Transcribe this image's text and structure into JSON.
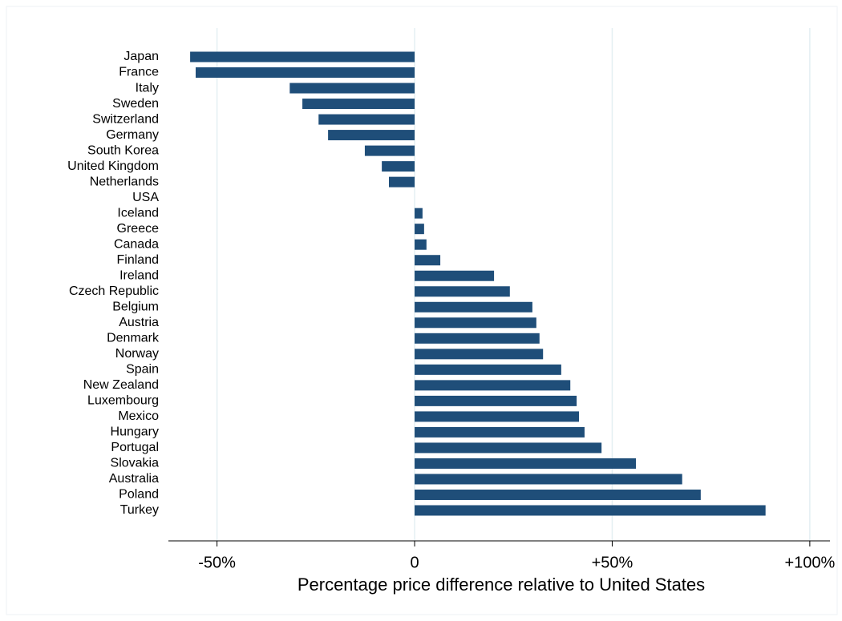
{
  "chart_data": {
    "type": "barh",
    "x_label": "Percentage price difference relative to United States",
    "categories": [
      "Japan",
      "France",
      "Italy",
      "Sweden",
      "Switzerland",
      "Germany",
      "South Korea",
      "United Kingdom",
      "Netherlands",
      "USA",
      "Iceland",
      "Greece",
      "Canada",
      "Finland",
      "Ireland",
      "Czech Republic",
      "Belgium",
      "Austria",
      "Denmark",
      "Norway",
      "Spain",
      "New Zealand",
      "Luxembourg",
      "Mexico",
      "Hungary",
      "Portugal",
      "Slovakia",
      "Australia",
      "Poland",
      "Turkey"
    ],
    "values": [
      -56.8,
      -55.4,
      -31.6,
      -28.4,
      -24.3,
      -21.9,
      -12.6,
      -8.3,
      -6.5,
      0,
      2.0,
      2.4,
      3.0,
      6.5,
      20.1,
      24.1,
      29.8,
      30.8,
      31.6,
      32.5,
      37.1,
      39.4,
      41.0,
      41.6,
      43.0,
      47.3,
      56.0,
      67.7,
      72.4,
      88.8
    ],
    "color": "#1f4e79",
    "xlim": [
      -62.3,
      105.1
    ],
    "xticks": [
      {
        "value": -50,
        "label": "-50%"
      },
      0,
      {
        "value": 50,
        "label": "+50%"
      },
      {
        "value": 100,
        "label": "+100%"
      }
    ],
    "grid": true,
    "grid_color": "#e4eff2"
  }
}
